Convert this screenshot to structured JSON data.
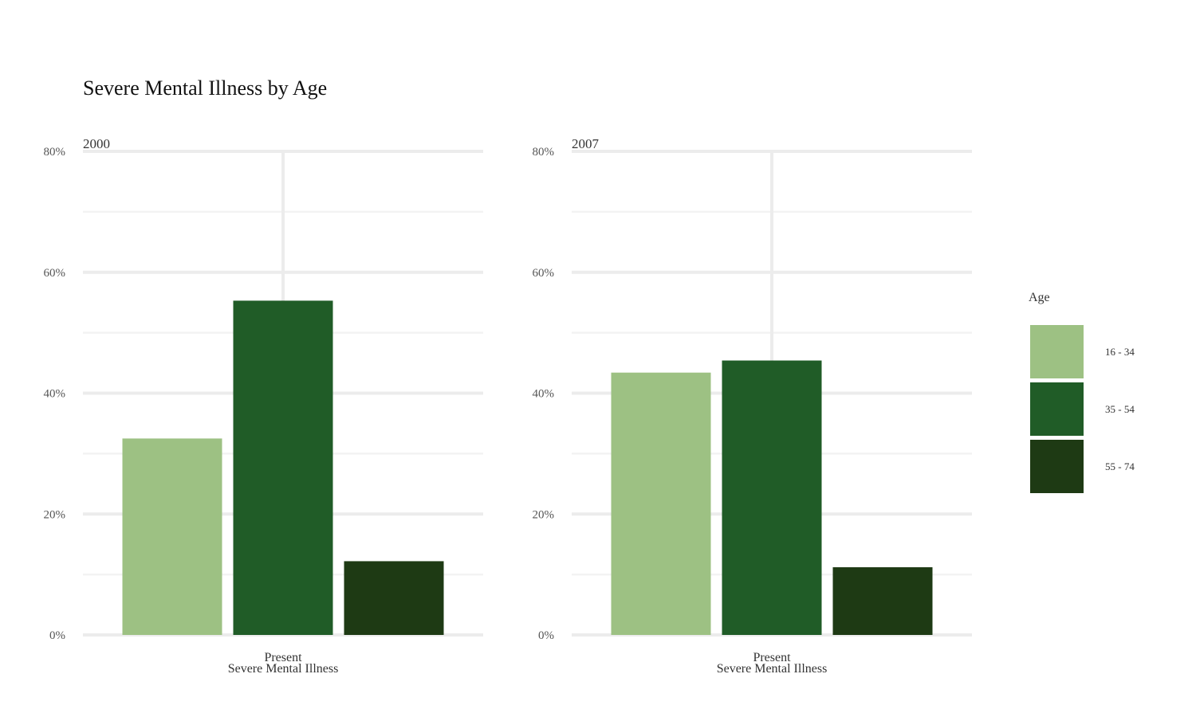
{
  "chart_data": {
    "type": "bar",
    "title": "Severe Mental Illness by Age",
    "xlabel": "Severe Mental Illness",
    "ylabel": "",
    "ylim": [
      0,
      80
    ],
    "yticks": [
      "0%",
      "20%",
      "40%",
      "60%",
      "80%"
    ],
    "categories": [
      "Present"
    ],
    "grid": true,
    "legend": {
      "title": "Age",
      "position": "right"
    },
    "series": [
      {
        "name": "16 - 34",
        "color": "#9dc183"
      },
      {
        "name": "35 - 54",
        "color": "#205c27"
      },
      {
        "name": "55 - 74",
        "color": "#1e3a14"
      }
    ],
    "facets": [
      {
        "label": "2000",
        "values": [
          32.5,
          55.3,
          12.2
        ]
      },
      {
        "label": "2007",
        "values": [
          43.4,
          45.4,
          11.2
        ]
      }
    ]
  }
}
